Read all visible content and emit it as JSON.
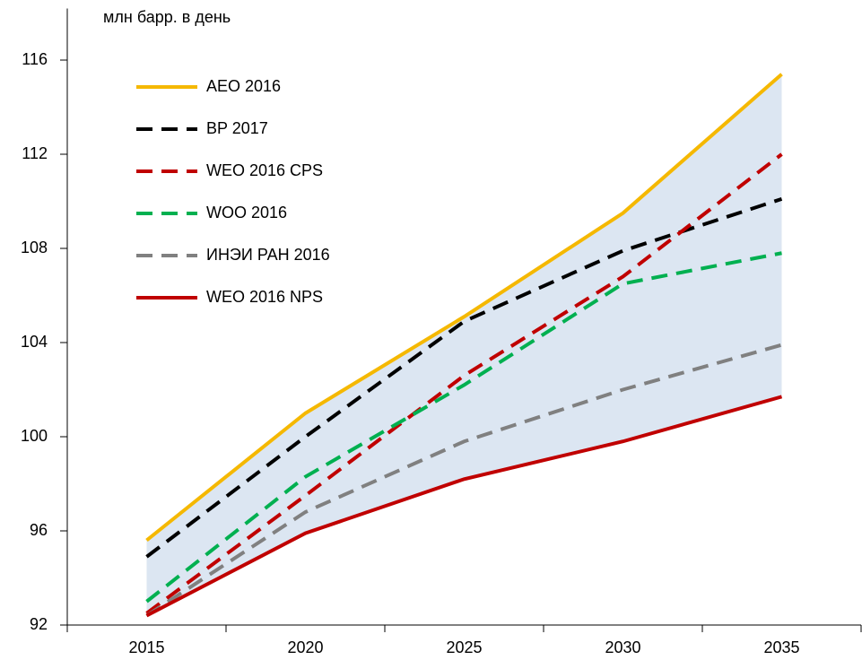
{
  "chart_data": {
    "type": "line",
    "ylabel": "млн барр. в день",
    "categories": [
      "2015",
      "2020",
      "2025",
      "2030",
      "2035"
    ],
    "series": [
      {
        "name": "AEO 2016",
        "color": "#f5b800",
        "dash": false,
        "values": [
          95.6,
          101.0,
          105.1,
          109.5,
          115.4
        ]
      },
      {
        "name": "BP 2017",
        "color": "#000000",
        "dash": true,
        "values": [
          94.9,
          100.0,
          104.9,
          107.9,
          110.1
        ]
      },
      {
        "name": "WEO 2016 CPS",
        "color": "#c00000",
        "dash": true,
        "values": [
          92.5,
          97.5,
          102.6,
          106.8,
          112.0
        ]
      },
      {
        "name": "WOO 2016",
        "color": "#00b050",
        "dash": true,
        "values": [
          93.0,
          98.3,
          102.2,
          106.5,
          107.8
        ]
      },
      {
        "name": "ИНЭИ РАН 2016",
        "color": "#808080",
        "dash": true,
        "values": [
          92.4,
          96.8,
          99.8,
          102.0,
          103.9
        ]
      },
      {
        "name": "WEO 2016 NPS",
        "color": "#c00000",
        "dash": false,
        "values": [
          92.4,
          95.9,
          98.2,
          99.8,
          101.7
        ]
      }
    ],
    "band_color": "#dce6f2",
    "ylim": [
      92,
      118
    ],
    "yticks": [
      92,
      96,
      100,
      104,
      108,
      112,
      116
    ],
    "grid": false,
    "legend": "top-left"
  }
}
